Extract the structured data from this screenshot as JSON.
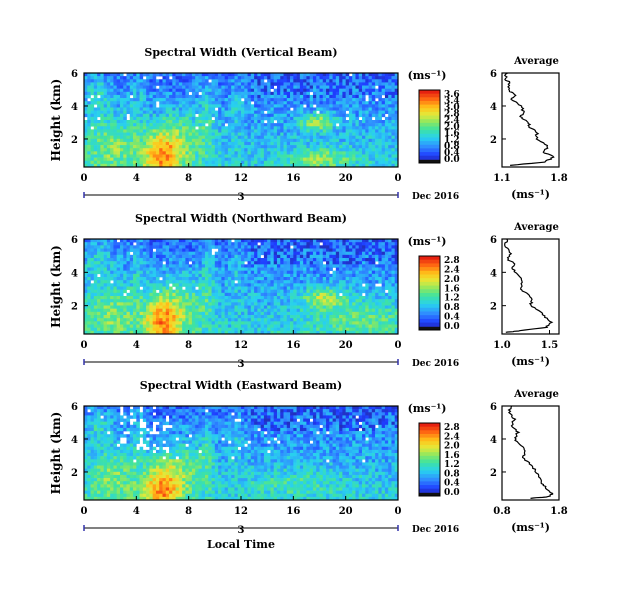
{
  "figure": {
    "xlabel": "Local Time",
    "date_label": "Dec 2016",
    "day_label": "3",
    "ylabel": "Height (km)",
    "cb_unit": "(ms⁻¹)",
    "avg_title": "Average",
    "avg_xlabel": "(ms⁻¹)"
  },
  "chart_data": [
    {
      "type": "heatmap",
      "title": "Spectral Width (Vertical Beam)",
      "xlabel": "Local Time",
      "ylabel": "Height (km)",
      "x_ticks": [
        "0",
        "4",
        "8",
        "12",
        "16",
        "20",
        "0"
      ],
      "y_ticks": [
        "2",
        "4",
        "6"
      ],
      "xlim": [
        0,
        24
      ],
      "ylim": [
        0.3,
        6
      ],
      "colorbar": {
        "ticks": [
          "3.6",
          "3.4",
          "3.0",
          "2.8",
          "2.4",
          "2.0",
          "1.6",
          "1.2",
          "0.8",
          "0.4",
          "0.0"
        ],
        "range": [
          0,
          3.6
        ]
      },
      "average": {
        "title": "Average",
        "x_ticks": [
          "1.1",
          "1.8"
        ],
        "xlim": [
          1.1,
          1.8
        ],
        "y_ticks": [
          "2",
          "4",
          "6"
        ],
        "profile": [
          [
            1.16,
            6.0
          ],
          [
            1.14,
            5.6
          ],
          [
            1.2,
            5.4
          ],
          [
            1.17,
            5.0
          ],
          [
            1.26,
            4.7
          ],
          [
            1.22,
            4.4
          ],
          [
            1.33,
            4.0
          ],
          [
            1.37,
            3.6
          ],
          [
            1.33,
            3.3
          ],
          [
            1.43,
            3.0
          ],
          [
            1.44,
            2.7
          ],
          [
            1.53,
            2.4
          ],
          [
            1.52,
            2.0
          ],
          [
            1.67,
            1.6
          ],
          [
            1.61,
            1.2
          ],
          [
            1.74,
            0.9
          ],
          [
            1.62,
            0.6
          ],
          [
            1.2,
            0.4
          ]
        ]
      }
    },
    {
      "type": "heatmap",
      "title": "Spectral Width (Northward Beam)",
      "xlabel": "Local Time",
      "ylabel": "Height (km)",
      "x_ticks": [
        "0",
        "4",
        "8",
        "12",
        "16",
        "20",
        "0"
      ],
      "y_ticks": [
        "2",
        "4",
        "6"
      ],
      "xlim": [
        0,
        24
      ],
      "ylim": [
        0.3,
        6
      ],
      "colorbar": {
        "ticks": [
          "2.8",
          "2.4",
          "2.0",
          "1.6",
          "1.2",
          "0.8",
          "0.4",
          "0.0"
        ],
        "range": [
          0,
          2.8
        ]
      },
      "average": {
        "title": "Average",
        "x_ticks": [
          "1.0",
          "1.5"
        ],
        "xlim": [
          1.0,
          1.6
        ],
        "y_ticks": [
          "2",
          "4",
          "6"
        ],
        "profile": [
          [
            1.05,
            6.0
          ],
          [
            1.03,
            5.6
          ],
          [
            1.09,
            5.2
          ],
          [
            1.06,
            4.8
          ],
          [
            1.14,
            4.5
          ],
          [
            1.11,
            4.2
          ],
          [
            1.18,
            3.8
          ],
          [
            1.22,
            3.4
          ],
          [
            1.19,
            3.0
          ],
          [
            1.28,
            2.7
          ],
          [
            1.32,
            2.3
          ],
          [
            1.3,
            2.0
          ],
          [
            1.4,
            1.7
          ],
          [
            1.45,
            1.3
          ],
          [
            1.52,
            1.0
          ],
          [
            1.46,
            0.7
          ],
          [
            1.2,
            0.5
          ],
          [
            1.04,
            0.4
          ]
        ]
      }
    },
    {
      "type": "heatmap",
      "title": "Spectral Width (Eastward Beam)",
      "xlabel": "Local Time",
      "ylabel": "Height (km)",
      "x_ticks": [
        "0",
        "4",
        "8",
        "12",
        "16",
        "20",
        "0"
      ],
      "y_ticks": [
        "2",
        "4",
        "6"
      ],
      "xlim": [
        0,
        24
      ],
      "ylim": [
        0.3,
        6
      ],
      "colorbar": {
        "ticks": [
          "2.8",
          "2.4",
          "2.0",
          "1.6",
          "1.2",
          "0.8",
          "0.4",
          "0.0"
        ],
        "range": [
          0,
          2.8
        ]
      },
      "average": {
        "title": "Average",
        "x_ticks": [
          "0.8",
          "1.8"
        ],
        "xlim": [
          0.8,
          1.8
        ],
        "y_ticks": [
          "2",
          "4",
          "6"
        ],
        "profile": [
          [
            0.95,
            6.0
          ],
          [
            0.92,
            5.6
          ],
          [
            1.02,
            5.2
          ],
          [
            0.97,
            4.8
          ],
          [
            1.08,
            4.4
          ],
          [
            1.02,
            4.0
          ],
          [
            1.15,
            3.6
          ],
          [
            1.2,
            3.2
          ],
          [
            1.18,
            2.8
          ],
          [
            1.32,
            2.4
          ],
          [
            1.38,
            2.1
          ],
          [
            1.45,
            1.7
          ],
          [
            1.5,
            1.3
          ],
          [
            1.58,
            1.0
          ],
          [
            1.68,
            0.7
          ],
          [
            1.62,
            0.5
          ],
          [
            1.3,
            0.4
          ]
        ]
      }
    }
  ]
}
